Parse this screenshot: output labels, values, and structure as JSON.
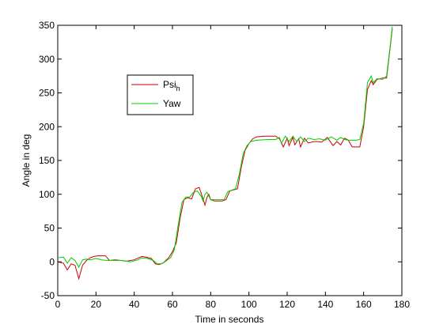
{
  "chart_data": {
    "type": "line",
    "title": "",
    "xlabel": "Time in seconds",
    "ylabel": "Angle in deg",
    "xlim": [
      0,
      180
    ],
    "ylim": [
      -50,
      350
    ],
    "xticks": [
      0,
      20,
      40,
      60,
      80,
      100,
      120,
      140,
      160,
      180
    ],
    "yticks": [
      -50,
      0,
      50,
      100,
      150,
      200,
      250,
      300,
      350
    ],
    "grid": false,
    "legend_position": "upper-left inside",
    "series": [
      {
        "name": "Psi",
        "name_subscript": "h",
        "color": "#cc0000",
        "points": [
          [
            0,
            0
          ],
          [
            3,
            -2
          ],
          [
            5,
            -12
          ],
          [
            7,
            -3
          ],
          [
            9,
            -5
          ],
          [
            11,
            -25
          ],
          [
            13,
            -5
          ],
          [
            15,
            2
          ],
          [
            17,
            6
          ],
          [
            19,
            8
          ],
          [
            21,
            9
          ],
          [
            23,
            9
          ],
          [
            25,
            9
          ],
          [
            27,
            2
          ],
          [
            30,
            3
          ],
          [
            33,
            2
          ],
          [
            36,
            1
          ],
          [
            40,
            3
          ],
          [
            44,
            8
          ],
          [
            46,
            7
          ],
          [
            49,
            5
          ],
          [
            51,
            -3
          ],
          [
            53,
            -4
          ],
          [
            55,
            -2
          ],
          [
            58,
            6
          ],
          [
            60,
            15
          ],
          [
            62,
            28
          ],
          [
            64,
            65
          ],
          [
            66,
            92
          ],
          [
            68,
            95
          ],
          [
            70,
            93
          ],
          [
            72,
            108
          ],
          [
            74,
            110
          ],
          [
            76,
            93
          ],
          [
            77,
            84
          ],
          [
            78,
            95
          ],
          [
            79,
            100
          ],
          [
            80,
            92
          ],
          [
            82,
            90
          ],
          [
            86,
            90
          ],
          [
            88,
            92
          ],
          [
            90,
            105
          ],
          [
            94,
            108
          ],
          [
            96,
            140
          ],
          [
            98,
            165
          ],
          [
            100,
            175
          ],
          [
            102,
            182
          ],
          [
            104,
            185
          ],
          [
            108,
            186
          ],
          [
            112,
            186
          ],
          [
            114,
            186
          ],
          [
            116,
            182
          ],
          [
            118,
            170
          ],
          [
            120,
            183
          ],
          [
            121,
            172
          ],
          [
            123,
            184
          ],
          [
            124,
            173
          ],
          [
            126,
            182
          ],
          [
            127,
            170
          ],
          [
            129,
            183
          ],
          [
            131,
            176
          ],
          [
            134,
            178
          ],
          [
            136,
            178
          ],
          [
            138,
            177
          ],
          [
            141,
            184
          ],
          [
            144,
            172
          ],
          [
            146,
            178
          ],
          [
            148,
            173
          ],
          [
            150,
            183
          ],
          [
            152,
            180
          ],
          [
            154,
            170
          ],
          [
            156,
            170
          ],
          [
            158,
            170
          ],
          [
            160,
            200
          ],
          [
            162,
            255
          ],
          [
            164,
            268
          ],
          [
            165,
            262
          ],
          [
            167,
            270
          ],
          [
            170,
            272
          ],
          [
            172,
            272
          ],
          [
            174,
            320
          ],
          [
            175,
            345
          ]
        ]
      },
      {
        "name": "Yaw",
        "color": "#00cc00",
        "points": [
          [
            0,
            6
          ],
          [
            3,
            7
          ],
          [
            5,
            -2
          ],
          [
            7,
            6
          ],
          [
            9,
            2
          ],
          [
            11,
            -8
          ],
          [
            13,
            3
          ],
          [
            15,
            4
          ],
          [
            17,
            3
          ],
          [
            20,
            5
          ],
          [
            23,
            3
          ],
          [
            26,
            2
          ],
          [
            30,
            2
          ],
          [
            34,
            2
          ],
          [
            38,
            0
          ],
          [
            42,
            3
          ],
          [
            44,
            6
          ],
          [
            47,
            5
          ],
          [
            50,
            2
          ],
          [
            52,
            -3
          ],
          [
            54,
            -3
          ],
          [
            56,
            0
          ],
          [
            59,
            6
          ],
          [
            61,
            18
          ],
          [
            63,
            55
          ],
          [
            65,
            88
          ],
          [
            67,
            96
          ],
          [
            69,
            96
          ],
          [
            71,
            103
          ],
          [
            73,
            105
          ],
          [
            75,
            97
          ],
          [
            76,
            90
          ],
          [
            77,
            100
          ],
          [
            78,
            103
          ],
          [
            80,
            92
          ],
          [
            84,
            92
          ],
          [
            87,
            92
          ],
          [
            89,
            104
          ],
          [
            93,
            108
          ],
          [
            95,
            130
          ],
          [
            97,
            160
          ],
          [
            99,
            172
          ],
          [
            101,
            178
          ],
          [
            104,
            180
          ],
          [
            110,
            181
          ],
          [
            114,
            181
          ],
          [
            116,
            184
          ],
          [
            117,
            175
          ],
          [
            119,
            186
          ],
          [
            121,
            178
          ],
          [
            123,
            186
          ],
          [
            125,
            178
          ],
          [
            127,
            185
          ],
          [
            129,
            178
          ],
          [
            131,
            183
          ],
          [
            134,
            181
          ],
          [
            137,
            182
          ],
          [
            140,
            180
          ],
          [
            143,
            185
          ],
          [
            146,
            180
          ],
          [
            148,
            184
          ],
          [
            150,
            181
          ],
          [
            152,
            180
          ],
          [
            156,
            180
          ],
          [
            158,
            181
          ],
          [
            160,
            205
          ],
          [
            162,
            265
          ],
          [
            164,
            275
          ],
          [
            165,
            265
          ],
          [
            167,
            271
          ],
          [
            170,
            270
          ],
          [
            172,
            275
          ],
          [
            174,
            322
          ],
          [
            175,
            348
          ]
        ]
      }
    ]
  }
}
